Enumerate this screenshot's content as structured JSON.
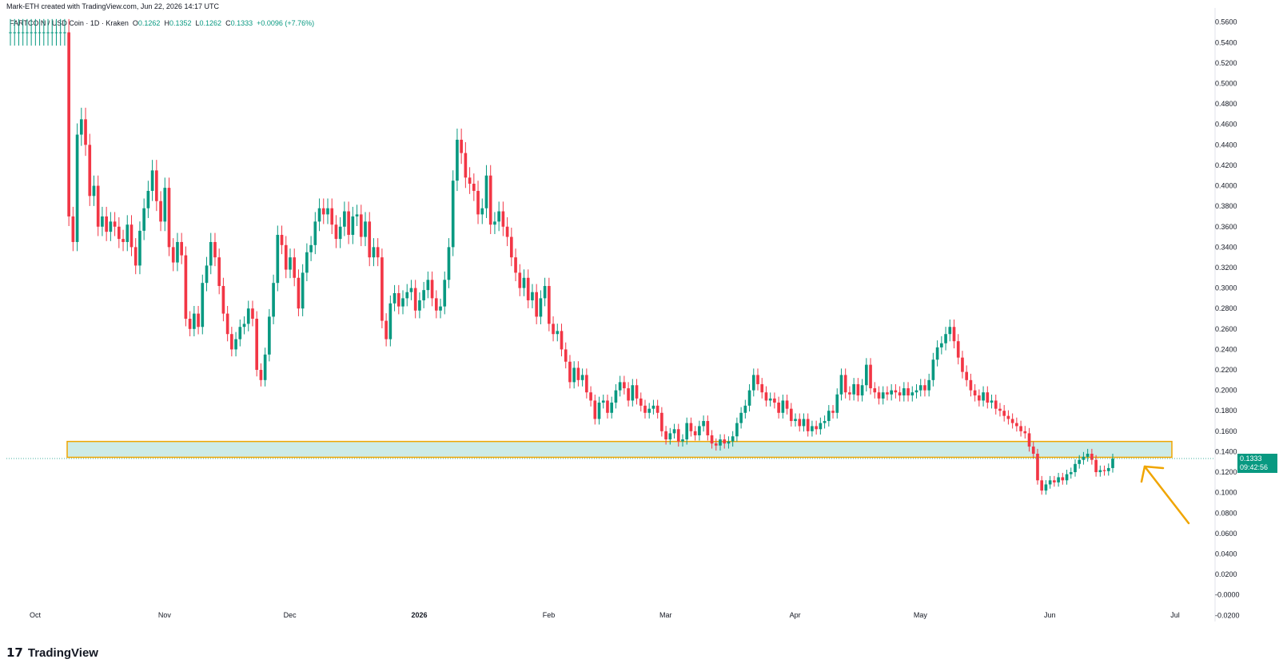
{
  "watermark": "Mark-ETH created with TradingView.com, Jun 22, 2026 14:17 UTC",
  "legend": {
    "symbol": "FARTCOIN / USD Coin · 1D · Kraken",
    "open_label": "O",
    "open": "0.1262",
    "high_label": "H",
    "high": "0.1352",
    "low_label": "L",
    "low": "0.1262",
    "close_label": "C",
    "close": "0.1333",
    "change": "+0.0096 (+7.76%)"
  },
  "price_tag": {
    "price": "0.1333",
    "countdown": "09:42:56"
  },
  "brand": {
    "logo": "17",
    "name": "TradingView"
  },
  "chart_data": {
    "type": "candlestick",
    "up_color": "#089981",
    "down_color": "#f23645",
    "zone_fill": "#cdebe7",
    "zone_border": "#f0a500",
    "arrow_color": "#f0a500",
    "y_ticks": [
      "0.5600",
      "0.5400",
      "0.5200",
      "0.5000",
      "0.4800",
      "0.4600",
      "0.4400",
      "0.4200",
      "0.4000",
      "0.3800",
      "0.3600",
      "0.3400",
      "0.3200",
      "0.3000",
      "0.2800",
      "0.2600",
      "0.2400",
      "0.2200",
      "0.2000",
      "0.1800",
      "0.1600",
      "0.1400",
      "0.1200",
      "0.1000",
      "0.0800",
      "0.0600",
      "0.0400",
      "0.0200",
      "-0.0000",
      "-0.0200"
    ],
    "x_ticks": [
      {
        "label": "Oct",
        "date": "2025-10-01"
      },
      {
        "label": "Nov",
        "date": "2025-11-01"
      },
      {
        "label": "Dec",
        "date": "2025-12-01"
      },
      {
        "label": "2026",
        "date": "2026-01-01"
      },
      {
        "label": "Feb",
        "date": "2026-02-01"
      },
      {
        "label": "Mar",
        "date": "2026-03-01"
      },
      {
        "label": "Apr",
        "date": "2026-04-01"
      },
      {
        "label": "May",
        "date": "2026-05-01"
      },
      {
        "label": "Jun",
        "date": "2026-06-01"
      },
      {
        "label": "Jul",
        "date": "2026-07-01"
      }
    ],
    "ylim": [
      -0.026,
      0.566
    ],
    "zone": {
      "low": 0.1345,
      "high": 0.15,
      "start": "2025-10-09",
      "end": "2026-06-30"
    },
    "last_price": 0.1333,
    "closes": [
      0.56,
      0.54,
      0.555,
      0.548,
      0.56,
      0.545,
      0.552,
      0.558,
      0.54,
      0.555,
      0.55,
      0.54,
      0.545,
      0.56,
      0.555,
      0.548,
      0.56,
      0.552,
      0.556,
      0.545,
      0.55,
      0.56,
      0.555,
      0.55,
      0.545,
      0.55,
      0.552,
      0.55,
      0.548,
      0.55,
      0.552,
      0.55,
      0.55,
      0.55,
      0.55,
      0.55,
      0.55,
      0.55,
      0.55,
      0.55,
      0.55,
      0.55,
      0.55,
      0.55,
      0.55,
      0.55,
      0.55,
      0.55,
      0.55,
      0.55,
      0.55,
      0.55,
      0.55,
      0.55,
      0.55,
      0.55,
      0.55,
      0.55,
      0.55,
      0.55,
      0.55,
      0.55,
      0.55,
      0.55,
      0.55,
      0.55,
      0.37,
      0.345,
      0.45,
      0.465,
      0.44,
      0.39,
      0.4,
      0.36,
      0.37,
      0.355,
      0.365,
      0.36,
      0.348,
      0.345,
      0.362,
      0.34,
      0.322,
      0.356,
      0.378,
      0.395,
      0.415,
      0.385,
      0.365,
      0.398,
      0.34,
      0.325,
      0.345,
      0.332,
      0.27,
      0.26,
      0.275,
      0.262,
      0.305,
      0.322,
      0.345,
      0.33,
      0.302,
      0.275,
      0.255,
      0.24,
      0.25,
      0.262,
      0.265,
      0.28,
      0.27,
      0.22,
      0.21,
      0.235,
      0.272,
      0.305,
      0.352,
      0.342,
      0.318,
      0.33,
      0.31,
      0.28,
      0.315,
      0.335,
      0.342,
      0.365,
      0.378,
      0.372,
      0.378,
      0.362,
      0.348,
      0.36,
      0.375,
      0.352,
      0.37,
      0.372,
      0.35,
      0.365,
      0.33,
      0.34,
      0.33,
      0.268,
      0.25,
      0.285,
      0.295,
      0.282,
      0.29,
      0.296,
      0.3,
      0.278,
      0.288,
      0.298,
      0.308,
      0.29,
      0.278,
      0.282,
      0.308,
      0.34,
      0.405,
      0.445,
      0.432,
      0.408,
      0.402,
      0.395,
      0.372,
      0.378,
      0.41,
      0.362,
      0.365,
      0.375,
      0.36,
      0.35,
      0.33,
      0.315,
      0.3,
      0.31,
      0.288,
      0.296,
      0.272,
      0.29,
      0.302,
      0.265,
      0.255,
      0.258,
      0.24,
      0.228,
      0.208,
      0.222,
      0.21,
      0.215,
      0.198,
      0.19,
      0.172,
      0.188,
      0.19,
      0.178,
      0.188,
      0.2,
      0.208,
      0.202,
      0.19,
      0.205,
      0.192,
      0.185,
      0.178,
      0.182,
      0.185,
      0.178,
      0.16,
      0.152,
      0.158,
      0.162,
      0.15,
      0.152,
      0.168,
      0.16,
      0.156,
      0.165,
      0.17,
      0.156,
      0.148,
      0.146,
      0.152,
      0.148,
      0.15,
      0.155,
      0.168,
      0.178,
      0.185,
      0.2,
      0.215,
      0.206,
      0.198,
      0.19,
      0.192,
      0.188,
      0.178,
      0.19,
      0.182,
      0.17,
      0.172,
      0.165,
      0.172,
      0.16,
      0.165,
      0.162,
      0.168,
      0.17,
      0.18,
      0.178,
      0.196,
      0.215,
      0.198,
      0.196,
      0.206,
      0.195,
      0.205,
      0.225,
      0.202,
      0.198,
      0.192,
      0.198,
      0.196,
      0.2,
      0.198,
      0.195,
      0.202,
      0.195,
      0.198,
      0.2,
      0.205,
      0.2,
      0.21,
      0.23,
      0.242,
      0.246,
      0.255,
      0.262,
      0.248,
      0.232,
      0.218,
      0.21,
      0.2,
      0.195,
      0.19,
      0.198,
      0.188,
      0.19,
      0.182,
      0.18,
      0.175,
      0.172,
      0.168,
      0.165,
      0.16,
      0.158,
      0.145,
      0.138,
      0.112,
      0.102,
      0.108,
      0.112,
      0.11,
      0.115,
      0.112,
      0.118,
      0.12,
      0.128,
      0.132,
      0.135,
      0.138,
      0.132,
      0.12,
      0.122,
      0.121,
      0.124,
      0.1333
    ]
  }
}
